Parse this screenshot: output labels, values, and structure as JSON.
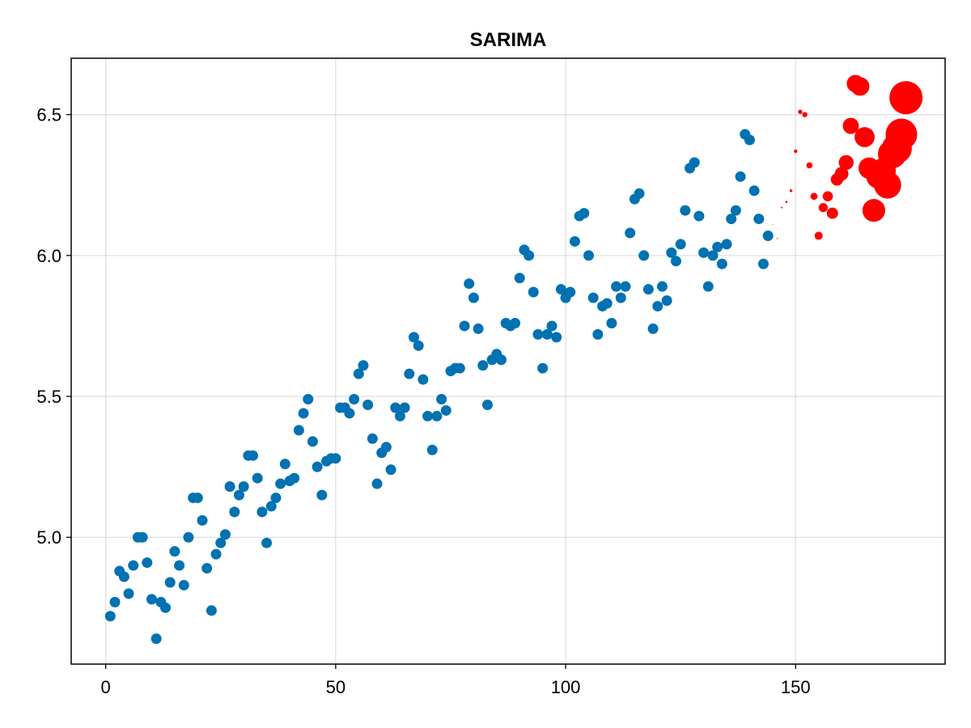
{
  "chart_data": {
    "type": "scatter",
    "title": "SARIMA",
    "xlabel": "",
    "ylabel": "",
    "xlim": [
      -7.5,
      182.5
    ],
    "ylim": [
      4.55,
      6.7
    ],
    "xticks": [
      0,
      50,
      100,
      150
    ],
    "yticks": [
      5.0,
      5.5,
      6.0,
      6.5
    ],
    "xtick_labels": [
      "0",
      "50",
      "100",
      "150"
    ],
    "ytick_labels": [
      "5.0",
      "5.5",
      "6.0",
      "6.5"
    ],
    "grid": true,
    "legend": "none",
    "series": [
      {
        "color": "#0072b2",
        "marker_size": "uniform",
        "points": [
          [
            1,
            4.72
          ],
          [
            2,
            4.77
          ],
          [
            3,
            4.88
          ],
          [
            4,
            4.86
          ],
          [
            5,
            4.8
          ],
          [
            6,
            4.9
          ],
          [
            7,
            5.0
          ],
          [
            8,
            5.0
          ],
          [
            9,
            4.91
          ],
          [
            10,
            4.78
          ],
          [
            11,
            4.64
          ],
          [
            12,
            4.77
          ],
          [
            13,
            4.75
          ],
          [
            14,
            4.84
          ],
          [
            15,
            4.95
          ],
          [
            16,
            4.9
          ],
          [
            17,
            4.83
          ],
          [
            18,
            5.0
          ],
          [
            19,
            5.14
          ],
          [
            20,
            5.14
          ],
          [
            21,
            5.06
          ],
          [
            22,
            4.89
          ],
          [
            23,
            4.74
          ],
          [
            24,
            4.94
          ],
          [
            25,
            4.98
          ],
          [
            26,
            5.01
          ],
          [
            27,
            5.18
          ],
          [
            28,
            5.09
          ],
          [
            29,
            5.15
          ],
          [
            30,
            5.18
          ],
          [
            31,
            5.29
          ],
          [
            32,
            5.29
          ],
          [
            33,
            5.21
          ],
          [
            34,
            5.09
          ],
          [
            35,
            4.98
          ],
          [
            36,
            5.11
          ],
          [
            37,
            5.14
          ],
          [
            38,
            5.19
          ],
          [
            39,
            5.26
          ],
          [
            40,
            5.2
          ],
          [
            41,
            5.21
          ],
          [
            42,
            5.38
          ],
          [
            43,
            5.44
          ],
          [
            44,
            5.49
          ],
          [
            45,
            5.34
          ],
          [
            46,
            5.25
          ],
          [
            47,
            5.15
          ],
          [
            48,
            5.27
          ],
          [
            49,
            5.28
          ],
          [
            50,
            5.28
          ],
          [
            51,
            5.46
          ],
          [
            52,
            5.46
          ],
          [
            53,
            5.44
          ],
          [
            54,
            5.49
          ],
          [
            55,
            5.58
          ],
          [
            56,
            5.61
          ],
          [
            57,
            5.47
          ],
          [
            58,
            5.35
          ],
          [
            59,
            5.19
          ],
          [
            60,
            5.3
          ],
          [
            61,
            5.32
          ],
          [
            62,
            5.24
          ],
          [
            63,
            5.46
          ],
          [
            64,
            5.43
          ],
          [
            65,
            5.46
          ],
          [
            66,
            5.58
          ],
          [
            67,
            5.71
          ],
          [
            68,
            5.68
          ],
          [
            69,
            5.56
          ],
          [
            70,
            5.43
          ],
          [
            71,
            5.31
          ],
          [
            72,
            5.43
          ],
          [
            73,
            5.49
          ],
          [
            74,
            5.45
          ],
          [
            75,
            5.59
          ],
          [
            76,
            5.6
          ],
          [
            77,
            5.6
          ],
          [
            78,
            5.75
          ],
          [
            79,
            5.9
          ],
          [
            80,
            5.85
          ],
          [
            81,
            5.74
          ],
          [
            82,
            5.61
          ],
          [
            83,
            5.47
          ],
          [
            84,
            5.63
          ],
          [
            85,
            5.65
          ],
          [
            86,
            5.63
          ],
          [
            87,
            5.76
          ],
          [
            88,
            5.75
          ],
          [
            89,
            5.76
          ],
          [
            90,
            5.92
          ],
          [
            91,
            6.02
          ],
          [
            92,
            6.0
          ],
          [
            93,
            5.87
          ],
          [
            94,
            5.72
          ],
          [
            95,
            5.6
          ],
          [
            96,
            5.72
          ],
          [
            97,
            5.75
          ],
          [
            98,
            5.71
          ],
          [
            99,
            5.88
          ],
          [
            100,
            5.85
          ],
          [
            101,
            5.87
          ],
          [
            102,
            6.05
          ],
          [
            103,
            6.14
          ],
          [
            104,
            6.15
          ],
          [
            105,
            6.0
          ],
          [
            106,
            5.85
          ],
          [
            107,
            5.72
          ],
          [
            108,
            5.82
          ],
          [
            109,
            5.83
          ],
          [
            110,
            5.76
          ],
          [
            111,
            5.89
          ],
          [
            112,
            5.85
          ],
          [
            113,
            5.89
          ],
          [
            114,
            6.08
          ],
          [
            115,
            6.2
          ],
          [
            116,
            6.22
          ],
          [
            117,
            6.0
          ],
          [
            118,
            5.88
          ],
          [
            119,
            5.74
          ],
          [
            120,
            5.82
          ],
          [
            121,
            5.89
          ],
          [
            122,
            5.84
          ],
          [
            123,
            6.01
          ],
          [
            124,
            5.98
          ],
          [
            125,
            6.04
          ],
          [
            126,
            6.16
          ],
          [
            127,
            6.31
          ],
          [
            128,
            6.33
          ],
          [
            129,
            6.14
          ],
          [
            130,
            6.01
          ],
          [
            131,
            5.89
          ],
          [
            132,
            6.0
          ],
          [
            133,
            6.03
          ],
          [
            134,
            5.97
          ],
          [
            135,
            6.04
          ],
          [
            136,
            6.13
          ],
          [
            137,
            6.16
          ],
          [
            138,
            6.28
          ],
          [
            139,
            6.43
          ],
          [
            140,
            6.41
          ],
          [
            141,
            6.23
          ],
          [
            142,
            6.13
          ],
          [
            143,
            5.97
          ],
          [
            144,
            6.07
          ]
        ]
      },
      {
        "color": "#ff0000",
        "marker_size": "growing",
        "points": [
          [
            145,
            6.11
          ],
          [
            146,
            6.06
          ],
          [
            147,
            6.17
          ],
          [
            148,
            6.19
          ],
          [
            149,
            6.23
          ],
          [
            150,
            6.37
          ],
          [
            151,
            6.51
          ],
          [
            152,
            6.5
          ],
          [
            153,
            6.32
          ],
          [
            154,
            6.21
          ],
          [
            155,
            6.07
          ],
          [
            156,
            6.17
          ],
          [
            157,
            6.21
          ],
          [
            158,
            6.15
          ],
          [
            159,
            6.27
          ],
          [
            160,
            6.29
          ],
          [
            161,
            6.33
          ],
          [
            162,
            6.46
          ],
          [
            163,
            6.61
          ],
          [
            164,
            6.6
          ],
          [
            165,
            6.42
          ],
          [
            166,
            6.31
          ],
          [
            167,
            6.16
          ],
          [
            168,
            6.28
          ],
          [
            169,
            6.3
          ],
          [
            170,
            6.25
          ],
          [
            171,
            6.36
          ],
          [
            172,
            6.38
          ],
          [
            173,
            6.43
          ],
          [
            174,
            6.56
          ]
        ]
      }
    ]
  }
}
